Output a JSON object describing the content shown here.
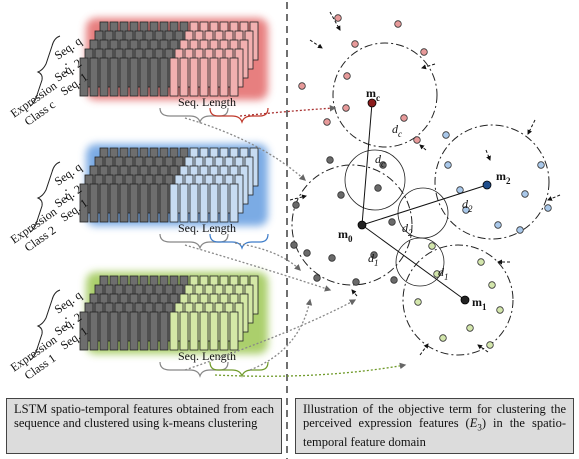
{
  "left": {
    "groups": [
      {
        "class_label": "Expression",
        "class_name": "Class c",
        "seqs": [
          "Seq. q",
          "Seq. 2",
          "Seq. 1"
        ],
        "length_label": "Seq. Length"
      },
      {
        "class_label": "Expression",
        "class_name": "Class 2",
        "seqs": [
          "Seq. q",
          "Seq. 2",
          "Seq. 1"
        ],
        "length_label": "Seq. Length"
      },
      {
        "class_label": "Expression",
        "class_name": "Class 1",
        "seqs": [
          "Seq. q",
          "Seq. 2",
          "Seq. 1"
        ],
        "length_label": "Seq. Length"
      }
    ],
    "caption": "LSTM spatio-temporal features obtained from each sequence and clustered using k-means clustering"
  },
  "right": {
    "centroids": [
      {
        "name": "m",
        "sub": "c"
      },
      {
        "name": "m",
        "sub": "2"
      },
      {
        "name": "m",
        "sub": "0"
      },
      {
        "name": "m",
        "sub": "1"
      }
    ],
    "distances": [
      {
        "name": "d",
        "sub": "c"
      },
      {
        "name": "d",
        "sub": "c"
      },
      {
        "name": "d",
        "sub": "2"
      },
      {
        "name": "d",
        "sub": "2"
      },
      {
        "name": "d",
        "sub": "1"
      },
      {
        "name": "d",
        "sub": "1"
      }
    ],
    "caption": {
      "before": "Illustration of the objective term for clustering the perceived expression features (",
      "symbol": "E",
      "sub": "3",
      "after": ") in the spatio-temporal feature domain"
    }
  }
}
